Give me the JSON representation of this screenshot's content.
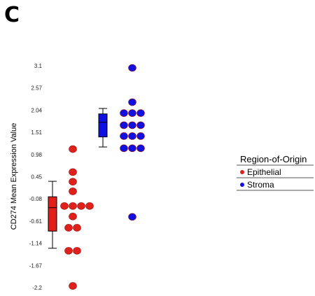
{
  "panel_label": "C",
  "chart_data": {
    "type": "scatter",
    "ylabel": "CD274 Mean Expression Value",
    "yticks": [
      3.1,
      2.57,
      2.04,
      1.51,
      0.98,
      0.45,
      -0.08,
      -0.61,
      -1.14,
      -1.67,
      -2.2
    ],
    "ytick_labels": [
      "3.1",
      "2.57",
      "2.04",
      "1.51",
      "0.98",
      "0.45",
      "-0.08",
      "-0.61",
      "-1.14",
      "-1.67",
      "-2.2"
    ],
    "ylim": [
      -2.2,
      3.1
    ],
    "legend": {
      "title": "Region-of-Origin",
      "placement": "right",
      "entries": [
        {
          "label": "Epithelial",
          "color": "#e0201b"
        },
        {
          "label": "Stroma",
          "color": "#1010e0"
        }
      ]
    },
    "series": [
      {
        "name": "Epithelial",
        "color": "#e0201b",
        "box": {
          "whisker_low": -1.26,
          "q1": -0.85,
          "median": -0.29,
          "q3": -0.03,
          "whisker_high": 0.34
        },
        "points": [
          1.11,
          0.56,
          0.33,
          0.1,
          -0.25,
          -0.25,
          -0.25,
          -0.25,
          -0.5,
          -0.77,
          -0.77,
          -1.32,
          -1.32,
          -2.16
        ]
      },
      {
        "name": "Stroma",
        "color": "#1010e0",
        "box": {
          "whisker_low": 1.16,
          "q1": 1.4,
          "median": 1.75,
          "q3": 1.95,
          "whisker_high": 2.08
        },
        "points": [
          3.05,
          2.23,
          1.97,
          1.97,
          1.97,
          1.68,
          1.68,
          1.68,
          1.42,
          1.42,
          1.42,
          1.13,
          1.13,
          1.13,
          -0.51
        ]
      }
    ]
  }
}
